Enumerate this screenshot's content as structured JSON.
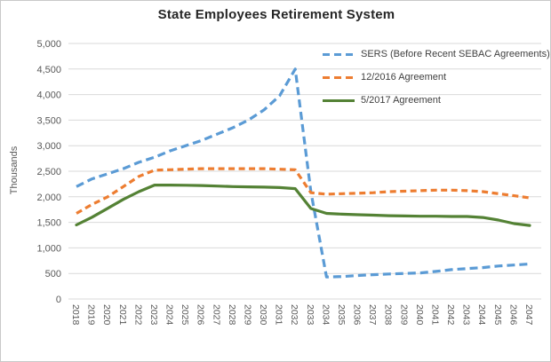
{
  "frame": {
    "background": "#ffffff",
    "border_color": "#c9c9c9"
  },
  "chart_data": {
    "type": "line",
    "title": "State Employees Retirement System",
    "ylabel": "Thousands",
    "xlabel": "",
    "ylim": [
      0,
      5000
    ],
    "ytick_step": 500,
    "ytick_labels": [
      "0",
      "500",
      "1,000",
      "1,500",
      "2,000",
      "2,500",
      "3,000",
      "3,500",
      "4,000",
      "4,500",
      "5,000"
    ],
    "grid": true,
    "legend_position": "top-right-overlay",
    "gridline_color": "#d9d9d9",
    "axis_text_color": "#595959",
    "title_color": "#262626",
    "legend_text_color": "#404040",
    "categories": [
      "2018",
      "2019",
      "2020",
      "2021",
      "2022",
      "2023",
      "2024",
      "2025",
      "2026",
      "2027",
      "2028",
      "2029",
      "2030",
      "2031",
      "2032",
      "2033",
      "2034",
      "2035",
      "2036",
      "2037",
      "2038",
      "2039",
      "2040",
      "2041",
      "2042",
      "2043",
      "2044",
      "2045",
      "2046",
      "2047"
    ],
    "series": [
      {
        "name": "SERS (Before Recent SEBAC Agreements)",
        "color": "#5b9bd5",
        "line_style": "dashed",
        "values": [
          2200,
          2350,
          2450,
          2550,
          2675,
          2775,
          2900,
          3000,
          3100,
          3225,
          3350,
          3500,
          3700,
          3975,
          4500,
          2100,
          430,
          440,
          460,
          475,
          490,
          500,
          510,
          540,
          575,
          595,
          615,
          645,
          665,
          685
        ]
      },
      {
        "name": "12/2016 Agreement",
        "color": "#ed7d31",
        "line_style": "dashed",
        "values": [
          1675,
          1850,
          2000,
          2200,
          2400,
          2520,
          2530,
          2540,
          2550,
          2550,
          2550,
          2550,
          2550,
          2540,
          2530,
          2080,
          2050,
          2060,
          2070,
          2080,
          2100,
          2110,
          2120,
          2130,
          2130,
          2120,
          2100,
          2060,
          2020,
          1980
        ]
      },
      {
        "name": "5/2017 Agreement",
        "color": "#548235",
        "line_style": "solid",
        "values": [
          1450,
          1600,
          1775,
          1950,
          2100,
          2230,
          2230,
          2225,
          2220,
          2210,
          2200,
          2195,
          2190,
          2180,
          2160,
          1770,
          1675,
          1660,
          1650,
          1640,
          1630,
          1625,
          1620,
          1620,
          1615,
          1615,
          1595,
          1545,
          1475,
          1440
        ]
      }
    ]
  }
}
